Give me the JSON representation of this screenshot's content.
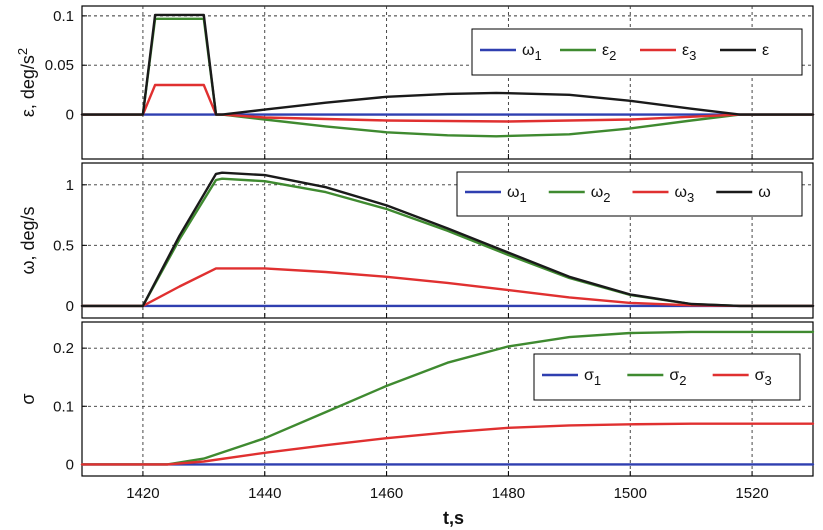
{
  "chart_data": [
    {
      "type": "line",
      "ylabel": "ε, deg/s",
      "ylabel_superscript": "2",
      "xlim": [
        1410,
        1530
      ],
      "ylim": [
        -0.045,
        0.11
      ],
      "yticks": [
        0,
        0.05,
        0.1
      ],
      "ytick_labels": [
        "0",
        "0.05",
        "0.1"
      ],
      "xticks": [
        1420,
        1440,
        1460,
        1480,
        1500,
        1520
      ],
      "grid": true,
      "legend_position": "top-right",
      "series": [
        {
          "name": "ω",
          "subscript": "1",
          "color": "#2f3fb0",
          "x": [
            1410,
            1530
          ],
          "y": [
            0,
            0
          ]
        },
        {
          "name": "ε",
          "subscript": "2",
          "color": "#3f8a30",
          "x": [
            1410,
            1420,
            1422,
            1430,
            1432,
            1433,
            1440,
            1450,
            1460,
            1470,
            1478,
            1490,
            1500,
            1510,
            1518,
            1530
          ],
          "y": [
            0,
            0,
            0.097,
            0.097,
            0,
            0,
            -0.005,
            -0.012,
            -0.018,
            -0.021,
            -0.022,
            -0.02,
            -0.014,
            -0.006,
            0,
            0
          ]
        },
        {
          "name": "ε",
          "subscript": "3",
          "color": "#e03030",
          "x": [
            1410,
            1420,
            1422,
            1430,
            1432,
            1433,
            1440,
            1460,
            1480,
            1500,
            1518,
            1530
          ],
          "y": [
            0,
            0,
            0.03,
            0.03,
            0,
            0,
            -0.003,
            -0.006,
            -0.007,
            -0.005,
            0,
            0
          ]
        },
        {
          "name": "ε",
          "subscript": "",
          "color": "#1a1a1a",
          "x": [
            1410,
            1420,
            1422,
            1430,
            1432,
            1433,
            1440,
            1450,
            1460,
            1470,
            1478,
            1490,
            1500,
            1510,
            1518,
            1530
          ],
          "y": [
            0,
            0,
            0.101,
            0.101,
            0,
            0,
            0.005,
            0.012,
            0.018,
            0.021,
            0.022,
            0.02,
            0.014,
            0.006,
            0,
            0
          ]
        }
      ]
    },
    {
      "type": "line",
      "ylabel": "ω, deg/s",
      "xlim": [
        1410,
        1530
      ],
      "ylim": [
        -0.1,
        1.18
      ],
      "yticks": [
        0,
        0.5,
        1
      ],
      "ytick_labels": [
        "0",
        "0.5",
        "1"
      ],
      "xticks": [
        1420,
        1440,
        1460,
        1480,
        1500,
        1520
      ],
      "grid": true,
      "legend_position": "top-right",
      "series": [
        {
          "name": "ω",
          "subscript": "1",
          "color": "#2f3fb0",
          "x": [
            1410,
            1530
          ],
          "y": [
            0,
            0
          ]
        },
        {
          "name": "ω",
          "subscript": "2",
          "color": "#3f8a30",
          "x": [
            1410,
            1420,
            1426,
            1432,
            1433,
            1440,
            1450,
            1460,
            1470,
            1480,
            1490,
            1500,
            1510,
            1518,
            1530
          ],
          "y": [
            0,
            0,
            0.55,
            1.04,
            1.05,
            1.03,
            0.94,
            0.8,
            0.62,
            0.42,
            0.23,
            0.09,
            0.015,
            0,
            0
          ]
        },
        {
          "name": "ω",
          "subscript": "3",
          "color": "#e03030",
          "x": [
            1410,
            1420,
            1426,
            1432,
            1433,
            1440,
            1450,
            1460,
            1470,
            1480,
            1490,
            1500,
            1510,
            1518,
            1530
          ],
          "y": [
            0,
            0,
            0.16,
            0.31,
            0.31,
            0.31,
            0.28,
            0.24,
            0.19,
            0.13,
            0.07,
            0.025,
            0.005,
            0,
            0
          ]
        },
        {
          "name": "ω",
          "subscript": "",
          "color": "#1a1a1a",
          "x": [
            1410,
            1420,
            1426,
            1432,
            1433,
            1440,
            1450,
            1460,
            1470,
            1480,
            1490,
            1500,
            1510,
            1518,
            1530
          ],
          "y": [
            0,
            0,
            0.58,
            1.09,
            1.1,
            1.08,
            0.98,
            0.83,
            0.64,
            0.44,
            0.24,
            0.094,
            0.016,
            0,
            0
          ]
        }
      ]
    },
    {
      "type": "line",
      "ylabel": "σ",
      "xlabel": "t,s",
      "xlim": [
        1410,
        1530
      ],
      "ylim": [
        -0.02,
        0.245
      ],
      "yticks": [
        0,
        0.1,
        0.2
      ],
      "ytick_labels": [
        "0",
        "0.1",
        "0.2"
      ],
      "xticks": [
        1420,
        1440,
        1460,
        1480,
        1500,
        1520
      ],
      "xtick_labels": [
        "1420",
        "1440",
        "1460",
        "1480",
        "1500",
        "1520"
      ],
      "grid": true,
      "legend_position": "right",
      "series": [
        {
          "name": "σ",
          "subscript": "1",
          "color": "#2f3fb0",
          "x": [
            1410,
            1530
          ],
          "y": [
            0,
            0
          ]
        },
        {
          "name": "σ",
          "subscript": "2",
          "color": "#3f8a30",
          "x": [
            1410,
            1424,
            1430,
            1440,
            1450,
            1460,
            1470,
            1480,
            1490,
            1500,
            1510,
            1520,
            1530
          ],
          "y": [
            0,
            0,
            0.01,
            0.045,
            0.09,
            0.135,
            0.175,
            0.203,
            0.219,
            0.226,
            0.228,
            0.228,
            0.228
          ]
        },
        {
          "name": "σ",
          "subscript": "3",
          "color": "#e03030",
          "x": [
            1410,
            1424,
            1430,
            1440,
            1450,
            1460,
            1470,
            1480,
            1490,
            1500,
            1510,
            1520,
            1530
          ],
          "y": [
            0,
            0,
            0.005,
            0.02,
            0.033,
            0.045,
            0.055,
            0.063,
            0.067,
            0.069,
            0.07,
            0.07,
            0.07
          ]
        }
      ]
    }
  ]
}
